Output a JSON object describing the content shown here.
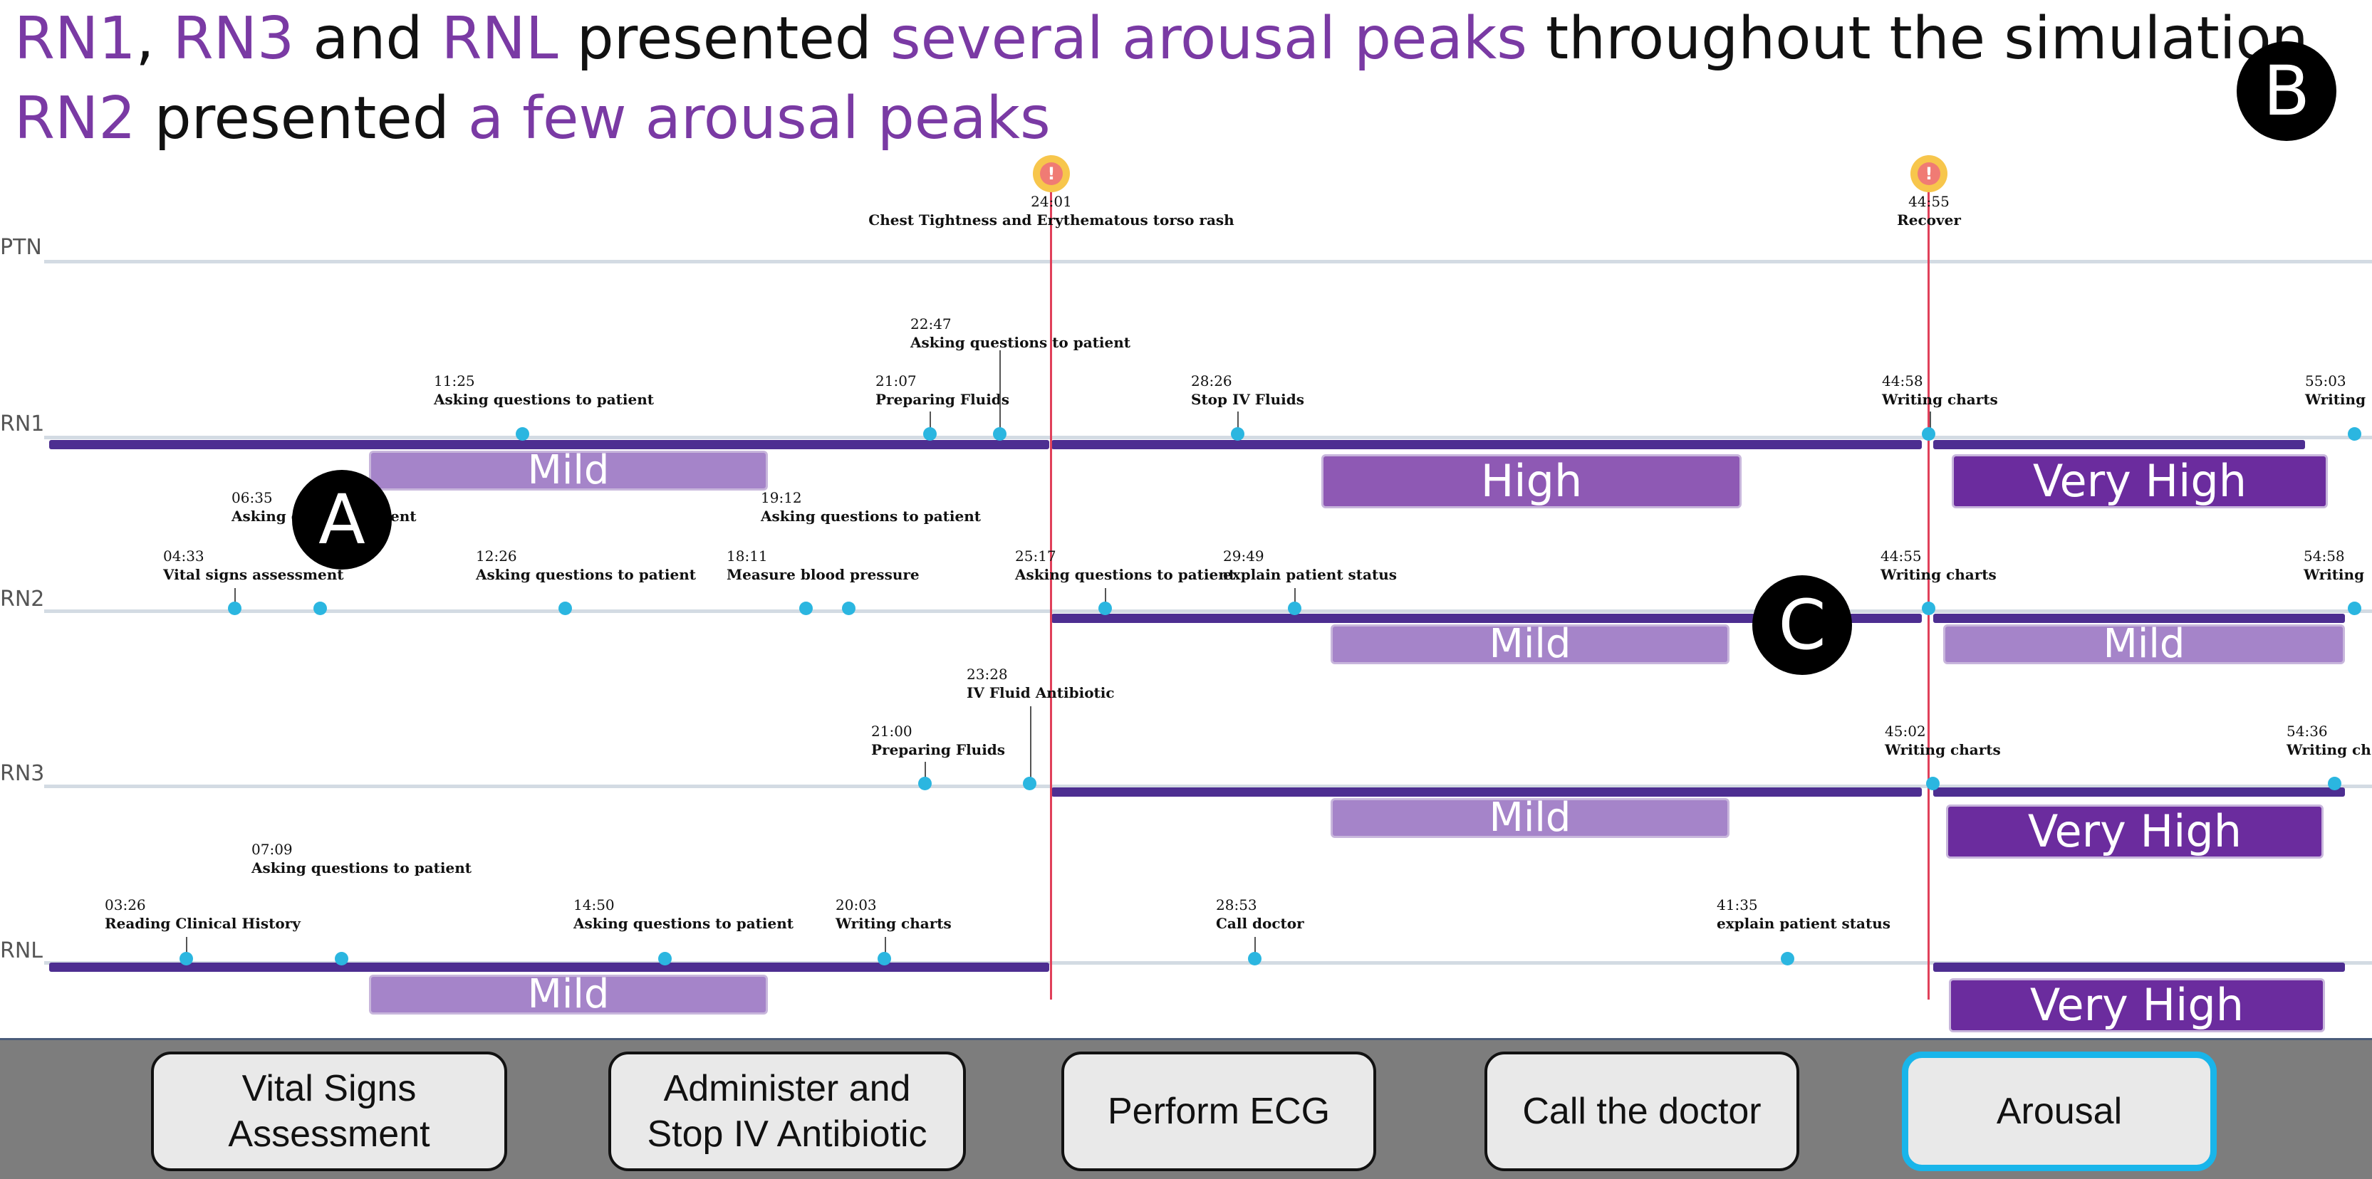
{
  "header": {
    "line1": {
      "rn1": "RN1",
      "comma": ", ",
      "rn3": "RN3",
      "and": " and ",
      "rnl": "RNL",
      "presented": " presented ",
      "peaks": "several arousal peaks",
      "rest": " throughout the simulation"
    },
    "line2": {
      "rn2": "RN2",
      "presented": " presented ",
      "peaks": "a few arousal peaks"
    }
  },
  "markers": {
    "a": "A",
    "b": "B",
    "c": "C"
  },
  "rows": {
    "ptn": "PTN",
    "rn1": "RN1",
    "rn2": "RN2",
    "rn3": "RN3",
    "rnl": "RNL"
  },
  "alerts": [
    {
      "icon": "!",
      "time": "24:01",
      "label": "Chest Tightness and Erythematous torso rash"
    },
    {
      "icon": "!",
      "time": "44:55",
      "label": "Recover"
    }
  ],
  "events": {
    "rn1": [
      {
        "time": "11:25",
        "label": "Asking questions to patient"
      },
      {
        "time": "21:07",
        "label": "Preparing Fluids"
      },
      {
        "time": "22:47",
        "label": "Asking questions to patient"
      },
      {
        "time": "28:26",
        "label": "Stop IV Fluids"
      },
      {
        "time": "44:58",
        "label": "Writing charts"
      },
      {
        "time": "55:03",
        "label": "Writing"
      }
    ],
    "rn2": [
      {
        "time": "06:35",
        "label": "Asking q"
      },
      {
        "time": "",
        "label": "ent"
      },
      {
        "time": "19:12",
        "label": "Asking questions to patient"
      },
      {
        "time": "04:33",
        "label": "Vital signs assessment"
      },
      {
        "time": "12:26",
        "label": "Asking questions to patient"
      },
      {
        "time": "18:11",
        "label": "Measure blood pressure"
      },
      {
        "time": "25:17",
        "label": "Asking questions to patient"
      },
      {
        "time": "29:49",
        "label": "explain patient status"
      },
      {
        "time": "44:55",
        "label": "Writing charts"
      },
      {
        "time": "54:58",
        "label": "Writing"
      }
    ],
    "rn3": [
      {
        "time": "23:28",
        "label": "IV Fluid Antibiotic"
      },
      {
        "time": "21:00",
        "label": "Preparing Fluids"
      },
      {
        "time": "45:02",
        "label": "Writing charts"
      },
      {
        "time": "54:36",
        "label": "Writing ch"
      }
    ],
    "rnl": [
      {
        "time": "07:09",
        "label": "Asking questions to patient"
      },
      {
        "time": "03:26",
        "label": "Reading Clinical History"
      },
      {
        "time": "14:50",
        "label": "Asking questions to patient"
      },
      {
        "time": "20:03",
        "label": "Writing charts"
      },
      {
        "time": "28:53",
        "label": "Call doctor"
      },
      {
        "time": "41:35",
        "label": "explain patient status"
      }
    ]
  },
  "arousal": {
    "rn1": [
      "Mild",
      "High",
      "Very High"
    ],
    "rn2": [
      "Mild",
      "Mild"
    ],
    "rn3": [
      "Mild",
      "Very High"
    ],
    "rnl": [
      "Mild",
      "Very High"
    ]
  },
  "toolbar": {
    "b1": {
      "line1": "Vital Signs",
      "line2": "Assessment"
    },
    "b2": {
      "line1": "Administer and",
      "line2": "Stop IV Antibiotic"
    },
    "b3": "Perform ECG",
    "b4": "Call the doctor",
    "b5": "Arousal",
    "active": "Arousal"
  },
  "colors": {
    "highlight": "#7a3aa4",
    "segment": "#4d2e91",
    "mild": "#a584c9",
    "high": "#8e59b4",
    "very_high": "#6b2c9e",
    "event_dot": "#2bb6e0",
    "alert_line": "#e0405a",
    "active_border": "#19b5ea"
  }
}
